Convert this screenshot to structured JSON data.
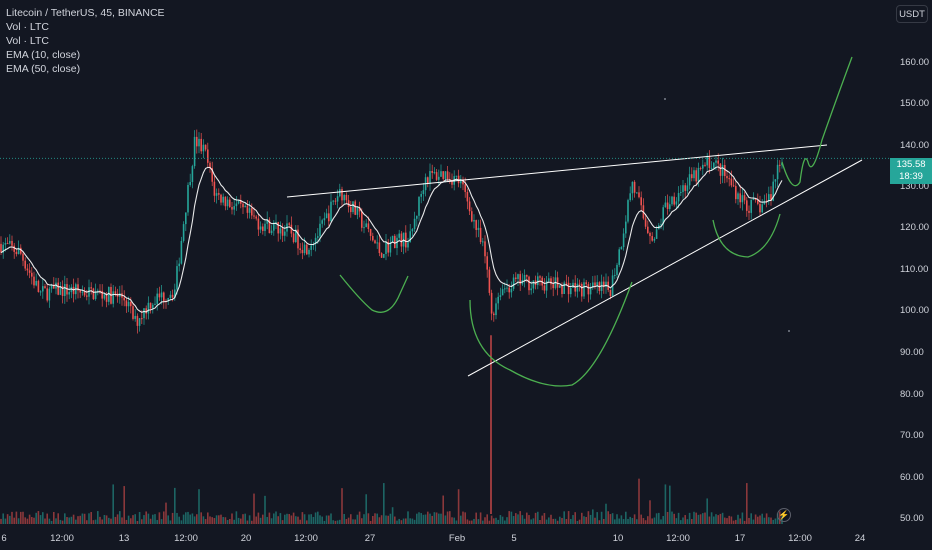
{
  "legend": {
    "symbol_line": "Litecoin / TetherUS, 45, BINANCE",
    "indicators": [
      "Vol · LTC",
      "Vol · LTC",
      "EMA (10, close)",
      "EMA (50, close)"
    ]
  },
  "currency_button": "USDT",
  "price_tag": {
    "price": "135.58",
    "countdown": "18:39"
  },
  "y_axis": {
    "labels": [
      "160.00",
      "150.00",
      "140.00",
      "130.00",
      "120.00",
      "110.00",
      "100.00",
      "90.00",
      "80.00",
      "70.00",
      "60.00",
      "50.00"
    ]
  },
  "x_axis": {
    "labels": [
      "6",
      "12:00",
      "13",
      "12:00",
      "20",
      "12:00",
      "27",
      "Feb",
      "5",
      "10",
      "12:00",
      "17",
      "12:00",
      "24"
    ]
  },
  "colors": {
    "background": "#131722",
    "up_candle": "#26a69a",
    "down_candle": "#ef5350",
    "ema_line": "#ffffff",
    "drawing_green": "#4caf50",
    "trendline": "#ffffff"
  },
  "icons": {
    "replay": "bolt-icon"
  }
}
